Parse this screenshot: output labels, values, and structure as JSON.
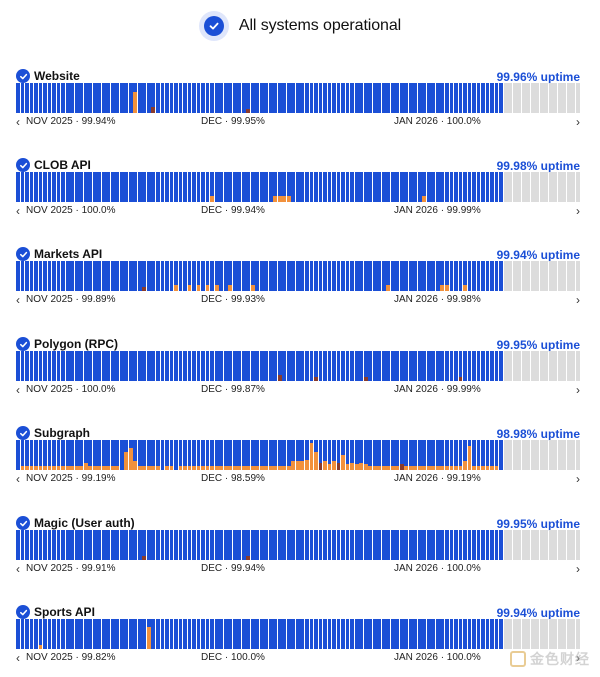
{
  "header": {
    "title": "All systems operational"
  },
  "services": [
    {
      "name": "Website",
      "uptime": "99.96% uptime",
      "months": [
        "NOV 2025 · 99.94%",
        "DEC · 99.95%",
        "JAN 2026 · 100.0%"
      ],
      "incidents": [
        {
          "day": 26,
          "level": "minor",
          "severity": 0.7
        },
        {
          "day": 30,
          "level": "major",
          "severity": 0.2
        },
        {
          "day": 51,
          "level": "major",
          "severity": 0.15
        }
      ]
    },
    {
      "name": "CLOB API",
      "uptime": "99.98% uptime",
      "months": [
        "NOV 2025 · 100.0%",
        "DEC · 99.94%",
        "JAN 2026 · 99.99%"
      ],
      "incidents": [
        {
          "day": 43,
          "level": "minor",
          "severity": 0.2
        },
        {
          "day": 57,
          "level": "minor",
          "severity": 0.2
        },
        {
          "day": 58,
          "level": "minor",
          "severity": 0.2
        },
        {
          "day": 59,
          "level": "minor",
          "severity": 0.2
        },
        {
          "day": 60,
          "level": "minor",
          "severity": 0.2
        },
        {
          "day": 90,
          "level": "minor",
          "severity": 0.2
        }
      ]
    },
    {
      "name": "Markets API",
      "uptime": "99.94% uptime",
      "months": [
        "NOV 2025 · 99.89%",
        "DEC · 99.93%",
        "JAN 2026 · 99.98%"
      ],
      "incidents": [
        {
          "day": 28,
          "level": "major",
          "severity": 0.15
        },
        {
          "day": 35,
          "level": "minor",
          "severity": 0.2
        },
        {
          "day": 38,
          "level": "minor",
          "severity": 0.2
        },
        {
          "day": 40,
          "level": "minor",
          "severity": 0.2
        },
        {
          "day": 42,
          "level": "minor",
          "severity": 0.2
        },
        {
          "day": 44,
          "level": "minor",
          "severity": 0.2
        },
        {
          "day": 47,
          "level": "minor",
          "severity": 0.2
        },
        {
          "day": 52,
          "level": "minor",
          "severity": 0.2
        },
        {
          "day": 82,
          "level": "minor",
          "severity": 0.2
        },
        {
          "day": 94,
          "level": "minor",
          "severity": 0.2
        },
        {
          "day": 95,
          "level": "minor",
          "severity": 0.2
        },
        {
          "day": 99,
          "level": "minor",
          "severity": 0.2
        }
      ]
    },
    {
      "name": "Polygon (RPC)",
      "uptime": "99.95% uptime",
      "months": [
        "NOV 2025 · 100.0%",
        "DEC · 99.87%",
        "JAN 2026 · 99.99%"
      ],
      "incidents": [
        {
          "day": 58,
          "level": "major",
          "severity": 0.2
        },
        {
          "day": 66,
          "level": "major",
          "severity": 0.15
        },
        {
          "day": 77,
          "level": "major",
          "severity": 0.15
        },
        {
          "day": 98,
          "level": "major",
          "severity": 0.15
        }
      ]
    },
    {
      "name": "Subgraph",
      "uptime": "98.98% uptime",
      "months": [
        "NOV 2025 · 99.19%",
        "DEC · 98.59%",
        "JAN 2026 · 99.19%"
      ],
      "incidents": [
        {
          "day": 1,
          "level": "minor",
          "severity": 0.15
        },
        {
          "day": 2,
          "level": "minor",
          "severity": 0.15
        },
        {
          "day": 3,
          "level": "minor",
          "severity": 0.15
        },
        {
          "day": 4,
          "level": "minor",
          "severity": 0.15
        },
        {
          "day": 5,
          "level": "minor",
          "severity": 0.15
        },
        {
          "day": 6,
          "level": "minor",
          "severity": 0.15
        },
        {
          "day": 7,
          "level": "minor",
          "severity": 0.15
        },
        {
          "day": 8,
          "level": "minor",
          "severity": 0.15
        },
        {
          "day": 9,
          "level": "minor",
          "severity": 0.15
        },
        {
          "day": 10,
          "level": "minor",
          "severity": 0.15
        },
        {
          "day": 11,
          "level": "minor",
          "severity": 0.15
        },
        {
          "day": 12,
          "level": "minor",
          "severity": 0.15
        },
        {
          "day": 13,
          "level": "minor",
          "severity": 0.15
        },
        {
          "day": 14,
          "level": "minor",
          "severity": 0.15
        },
        {
          "day": 15,
          "level": "minor",
          "severity": 0.25
        },
        {
          "day": 16,
          "level": "minor",
          "severity": 0.15
        },
        {
          "day": 17,
          "level": "minor",
          "severity": 0.15
        },
        {
          "day": 18,
          "level": "minor",
          "severity": 0.15
        },
        {
          "day": 19,
          "level": "minor",
          "severity": 0.15
        },
        {
          "day": 20,
          "level": "minor",
          "severity": 0.15
        },
        {
          "day": 21,
          "level": "minor",
          "severity": 0.15
        },
        {
          "day": 22,
          "level": "minor",
          "severity": 0.15
        },
        {
          "day": 24,
          "level": "minor",
          "severity": 0.6
        },
        {
          "day": 25,
          "level": "minor",
          "severity": 0.75
        },
        {
          "day": 26,
          "level": "minor",
          "severity": 0.3
        },
        {
          "day": 27,
          "level": "minor",
          "severity": 0.15
        },
        {
          "day": 28,
          "level": "minor",
          "severity": 0.15
        },
        {
          "day": 29,
          "level": "minor",
          "severity": 0.15
        },
        {
          "day": 30,
          "level": "minor",
          "severity": 0.15
        },
        {
          "day": 31,
          "level": "minor",
          "severity": 0.15
        },
        {
          "day": 33,
          "level": "minor",
          "severity": 0.15
        },
        {
          "day": 34,
          "level": "minor",
          "severity": 0.15
        },
        {
          "day": 36,
          "level": "minor",
          "severity": 0.15
        },
        {
          "day": 37,
          "level": "minor",
          "severity": 0.15
        },
        {
          "day": 38,
          "level": "minor",
          "severity": 0.15
        },
        {
          "day": 39,
          "level": "minor",
          "severity": 0.15
        },
        {
          "day": 40,
          "level": "minor",
          "severity": 0.15
        },
        {
          "day": 41,
          "level": "minor",
          "severity": 0.15
        },
        {
          "day": 42,
          "level": "minor",
          "severity": 0.15
        },
        {
          "day": 43,
          "level": "minor",
          "severity": 0.15
        },
        {
          "day": 44,
          "level": "minor",
          "severity": 0.15
        },
        {
          "day": 45,
          "level": "minor",
          "severity": 0.15
        },
        {
          "day": 46,
          "level": "minor",
          "severity": 0.15
        },
        {
          "day": 47,
          "level": "minor",
          "severity": 0.15
        },
        {
          "day": 48,
          "level": "minor",
          "severity": 0.15
        },
        {
          "day": 49,
          "level": "minor",
          "severity": 0.15
        },
        {
          "day": 50,
          "level": "minor",
          "severity": 0.15
        },
        {
          "day": 51,
          "level": "minor",
          "severity": 0.15
        },
        {
          "day": 52,
          "level": "minor",
          "severity": 0.15
        },
        {
          "day": 53,
          "level": "minor",
          "severity": 0.15
        },
        {
          "day": 54,
          "level": "minor",
          "severity": 0.15
        },
        {
          "day": 55,
          "level": "minor",
          "severity": 0.15
        },
        {
          "day": 56,
          "level": "minor",
          "severity": 0.15
        },
        {
          "day": 57,
          "level": "minor",
          "severity": 0.15
        },
        {
          "day": 58,
          "level": "minor",
          "severity": 0.15
        },
        {
          "day": 59,
          "level": "minor",
          "severity": 0.15
        },
        {
          "day": 60,
          "level": "minor",
          "severity": 0.15
        },
        {
          "day": 61,
          "level": "minor",
          "severity": 0.3
        },
        {
          "day": 62,
          "level": "minor",
          "severity": 0.3
        },
        {
          "day": 63,
          "level": "minor",
          "severity": 0.3
        },
        {
          "day": 64,
          "level": "minor",
          "severity": 0.35
        },
        {
          "day": 65,
          "level": "minor",
          "severity": 0.9
        },
        {
          "day": 66,
          "level": "minor",
          "severity": 0.6
        },
        {
          "day": 67,
          "level": "major",
          "severity": 0.25
        },
        {
          "day": 68,
          "level": "minor",
          "severity": 0.3
        },
        {
          "day": 69,
          "level": "minor",
          "severity": 0.2
        },
        {
          "day": 70,
          "level": "minor",
          "severity": 0.3
        },
        {
          "day": 71,
          "level": "major",
          "severity": 0.25
        },
        {
          "day": 72,
          "level": "minor",
          "severity": 0.5
        },
        {
          "day": 73,
          "level": "minor",
          "severity": 0.2
        },
        {
          "day": 74,
          "level": "minor",
          "severity": 0.25
        },
        {
          "day": 75,
          "level": "minor",
          "severity": 0.2
        },
        {
          "day": 76,
          "level": "minor",
          "severity": 0.25
        },
        {
          "day": 77,
          "level": "minor",
          "severity": 0.2
        },
        {
          "day": 78,
          "level": "minor",
          "severity": 0.15
        },
        {
          "day": 79,
          "level": "minor",
          "severity": 0.15
        },
        {
          "day": 80,
          "level": "minor",
          "severity": 0.15
        },
        {
          "day": 81,
          "level": "minor",
          "severity": 0.15
        },
        {
          "day": 82,
          "level": "minor",
          "severity": 0.15
        },
        {
          "day": 83,
          "level": "minor",
          "severity": 0.15
        },
        {
          "day": 84,
          "level": "minor",
          "severity": 0.15
        },
        {
          "day": 85,
          "level": "major",
          "severity": 0.2
        },
        {
          "day": 86,
          "level": "minor",
          "severity": 0.15
        },
        {
          "day": 87,
          "level": "minor",
          "severity": 0.15
        },
        {
          "day": 88,
          "level": "minor",
          "severity": 0.15
        },
        {
          "day": 89,
          "level": "minor",
          "severity": 0.15
        },
        {
          "day": 90,
          "level": "minor",
          "severity": 0.15
        },
        {
          "day": 91,
          "level": "minor",
          "severity": 0.15
        },
        {
          "day": 92,
          "level": "minor",
          "severity": 0.15
        },
        {
          "day": 93,
          "level": "minor",
          "severity": 0.15
        },
        {
          "day": 94,
          "level": "minor",
          "severity": 0.15
        },
        {
          "day": 95,
          "level": "minor",
          "severity": 0.15
        },
        {
          "day": 96,
          "level": "minor",
          "severity": 0.15
        },
        {
          "day": 97,
          "level": "minor",
          "severity": 0.15
        },
        {
          "day": 98,
          "level": "minor",
          "severity": 0.15
        },
        {
          "day": 99,
          "level": "minor",
          "severity": 0.3
        },
        {
          "day": 100,
          "level": "minor",
          "severity": 0.8
        },
        {
          "day": 101,
          "level": "minor",
          "severity": 0.15
        },
        {
          "day": 102,
          "level": "minor",
          "severity": 0.15
        },
        {
          "day": 103,
          "level": "minor",
          "severity": 0.15
        },
        {
          "day": 104,
          "level": "minor",
          "severity": 0.15
        },
        {
          "day": 105,
          "level": "minor",
          "severity": 0.15
        },
        {
          "day": 106,
          "level": "minor",
          "severity": 0.15
        }
      ]
    },
    {
      "name": "Magic (User auth)",
      "uptime": "99.95% uptime",
      "months": [
        "NOV 2025 · 99.91%",
        "DEC · 99.94%",
        "JAN 2026 · 100.0%"
      ],
      "incidents": [
        {
          "day": 28,
          "level": "major",
          "severity": 0.12
        },
        {
          "day": 51,
          "level": "major",
          "severity": 0.12
        }
      ]
    },
    {
      "name": "Sports API",
      "uptime": "99.94% uptime",
      "months": [
        "NOV 2025 · 99.82%",
        "DEC · 100.0%",
        "JAN 2026 · 100.0%"
      ],
      "incidents": [
        {
          "day": 5,
          "level": "minor",
          "severity": 0.15
        },
        {
          "day": 29,
          "level": "minor",
          "severity": 0.75
        }
      ]
    }
  ],
  "history": {
    "days_total": 125,
    "days_filled": 108
  },
  "colors": {
    "operational": "#1b4fd6",
    "minor": "#f2913c",
    "major": "#8a3b2c",
    "empty": "#dcdcdc",
    "accent": "#1b4fd6"
  },
  "icons": {
    "check": "check-icon",
    "prev": "chevron-left-icon",
    "next": "chevron-right-icon"
  },
  "watermark": {
    "text": "金色财经"
  }
}
